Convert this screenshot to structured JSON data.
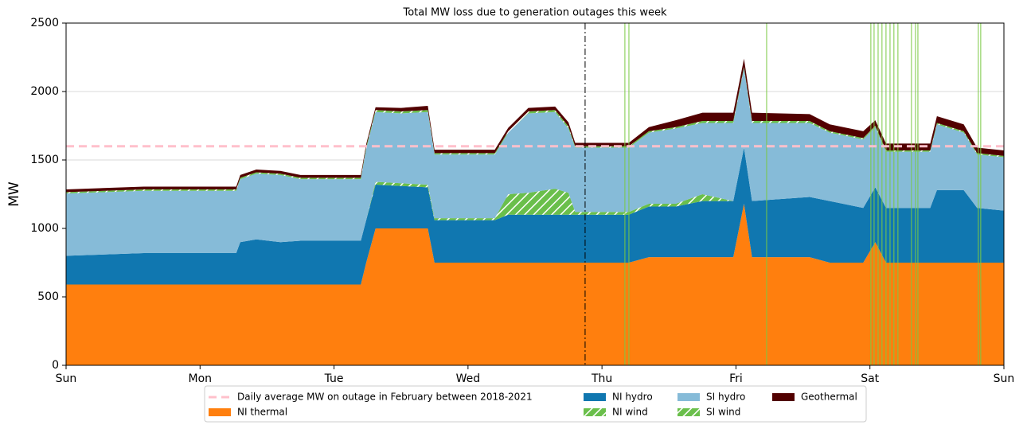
{
  "chart_data": {
    "type": "area",
    "title": "Total MW loss due to generation outages this week",
    "y_label": "MW",
    "x": [
      0,
      0.58,
      1.27,
      1.3,
      1.42,
      1.6,
      1.75,
      2.2,
      2.24,
      2.31,
      2.5,
      2.7,
      2.75,
      3.2,
      3.3,
      3.45,
      3.65,
      3.75,
      3.8,
      4.2,
      4.35,
      4.55,
      4.75,
      4.98,
      5.06,
      5.12,
      5.55,
      5.7,
      5.95,
      6.04,
      6.12,
      6.45,
      6.5,
      6.7,
      6.8,
      7
    ],
    "series": [
      {
        "name": "NI thermal",
        "color": "#ff7f0e",
        "values": [
          590,
          590,
          590,
          590,
          590,
          590,
          590,
          590,
          750,
          1000,
          1000,
          1000,
          750,
          750,
          750,
          750,
          750,
          750,
          750,
          750,
          790,
          790,
          790,
          790,
          1180,
          790,
          790,
          750,
          750,
          900,
          750,
          750,
          750,
          750,
          750,
          750
        ]
      },
      {
        "name": "NI hydro",
        "color": "#1077b0",
        "values": [
          210,
          230,
          230,
          310,
          330,
          310,
          320,
          320,
          310,
          320,
          310,
          300,
          310,
          310,
          350,
          350,
          350,
          350,
          350,
          350,
          370,
          370,
          410,
          410,
          410,
          410,
          440,
          450,
          400,
          400,
          400,
          400,
          530,
          530,
          400,
          380
        ]
      },
      {
        "name": "NI wind",
        "color": "#6abf4b",
        "hatch": true,
        "values": [
          0,
          0,
          0,
          0,
          0,
          0,
          0,
          0,
          0,
          20,
          20,
          20,
          15,
          15,
          150,
          160,
          190,
          160,
          20,
          20,
          20,
          20,
          50,
          0,
          0,
          0,
          0,
          0,
          0,
          0,
          0,
          0,
          0,
          0,
          0,
          0
        ]
      },
      {
        "name": "SI hydro",
        "color": "#86bbd8",
        "values": [
          455,
          455,
          455,
          460,
          480,
          490,
          450,
          450,
          520,
          510,
          510,
          530,
          465,
          465,
          450,
          580,
          560,
          470,
          470,
          470,
          520,
          550,
          520,
          570,
          580,
          570,
          540,
          500,
          500,
          440,
          410,
          410,
          480,
          420,
          390,
          390
        ]
      },
      {
        "name": "SI wind",
        "color": "#6abf4b",
        "hatch": true,
        "values": [
          10,
          10,
          10,
          10,
          10,
          10,
          10,
          10,
          15,
          15,
          15,
          15,
          10,
          10,
          10,
          15,
          15,
          15,
          10,
          10,
          10,
          10,
          15,
          15,
          10,
          15,
          15,
          10,
          10,
          10,
          10,
          10,
          10,
          10,
          10,
          10
        ]
      },
      {
        "name": "Geothermal",
        "color": "#520000",
        "values": [
          20,
          20,
          20,
          20,
          20,
          20,
          20,
          20,
          20,
          20,
          25,
          30,
          25,
          25,
          25,
          25,
          25,
          30,
          25,
          25,
          30,
          50,
          60,
          60,
          60,
          60,
          50,
          50,
          50,
          40,
          50,
          50,
          50,
          50,
          40,
          40
        ]
      }
    ],
    "reference_line": {
      "label": "Daily average MW on outage in February between 2018-2021",
      "value": 1600,
      "color": "#ffc0cb"
    },
    "now_line": {
      "x": 3.874,
      "color": "#000000"
    },
    "event_lines": {
      "color": "#7ac943",
      "x": [
        4.171,
        4.201,
        5.229,
        6.007,
        6.031,
        6.061,
        6.09,
        6.12,
        6.15,
        6.179,
        6.209,
        6.31,
        6.34,
        6.358,
        6.809,
        6.827
      ]
    },
    "xlim": [
      0,
      7
    ],
    "xticks": [
      {
        "value": 0,
        "label": "Sun"
      },
      {
        "value": 1,
        "label": "Mon"
      },
      {
        "value": 2,
        "label": "Tue"
      },
      {
        "value": 3,
        "label": "Wed"
      },
      {
        "value": 4,
        "label": "Thu"
      },
      {
        "value": 5,
        "label": "Fri"
      },
      {
        "value": 6,
        "label": "Sat"
      },
      {
        "value": 7,
        "label": "Sun"
      }
    ],
    "ylim": [
      0,
      2500
    ],
    "yticks": [
      0,
      500,
      1000,
      1500,
      2000,
      2500
    ],
    "grid": true,
    "legend": "bottom"
  }
}
